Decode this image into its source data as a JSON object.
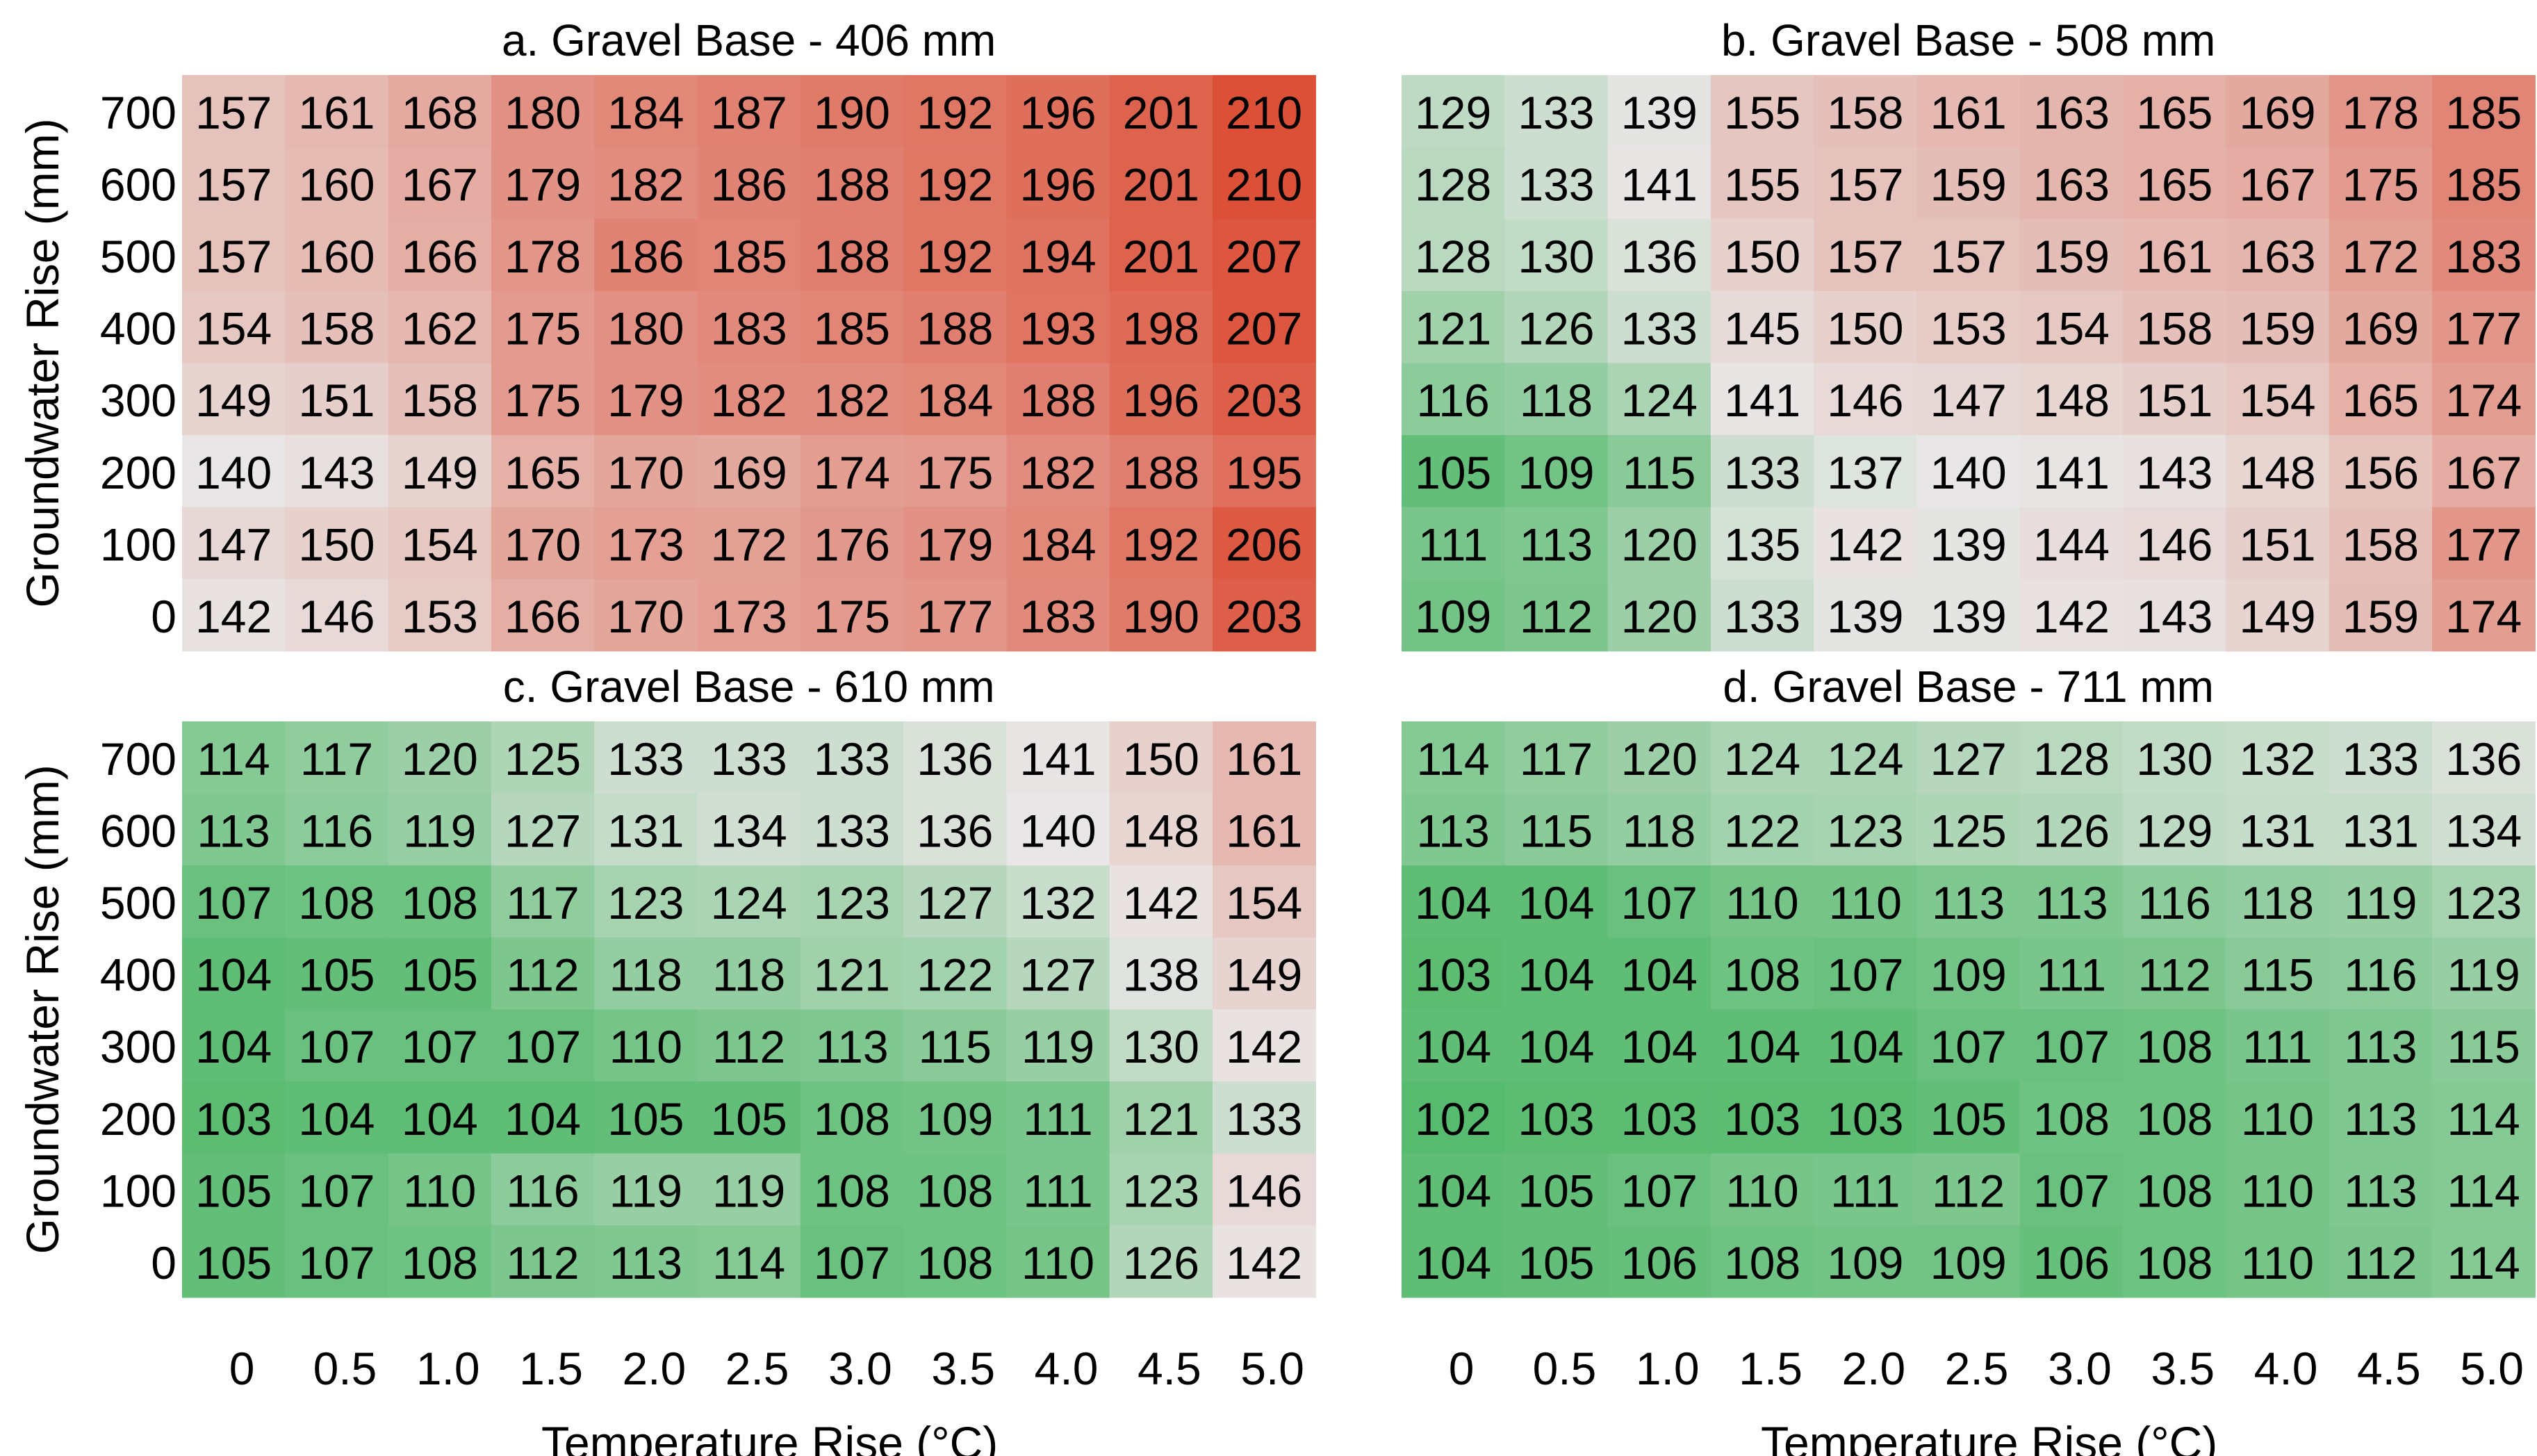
{
  "colors": {
    "low": "#57bb6f",
    "mid": "#e8e6e6",
    "high": "#dd5038"
  },
  "chart_data": [
    {
      "type": "heatmap",
      "title": "a. Gravel Base - 406 mm",
      "xlabel": "Temperature Rise (°C)",
      "ylabel": "Groundwater Rise (mm)",
      "x": [
        "0",
        "0.5",
        "1.0",
        "1.5",
        "2.0",
        "2.5",
        "3.0",
        "3.5",
        "4.0",
        "4.5",
        "5.0"
      ],
      "y": [
        "700",
        "600",
        "500",
        "400",
        "300",
        "200",
        "100",
        "0"
      ],
      "values": [
        [
          157,
          161,
          168,
          180,
          184,
          187,
          190,
          192,
          196,
          201,
          210
        ],
        [
          157,
          160,
          167,
          179,
          182,
          186,
          188,
          192,
          196,
          201,
          210
        ],
        [
          157,
          160,
          166,
          178,
          186,
          185,
          188,
          192,
          194,
          201,
          207
        ],
        [
          154,
          158,
          162,
          175,
          180,
          183,
          185,
          188,
          193,
          198,
          207
        ],
        [
          149,
          151,
          158,
          175,
          179,
          182,
          182,
          184,
          188,
          196,
          203
        ],
        [
          140,
          143,
          149,
          165,
          170,
          169,
          174,
          175,
          182,
          188,
          195
        ],
        [
          147,
          150,
          154,
          170,
          173,
          172,
          176,
          179,
          184,
          192,
          206
        ],
        [
          142,
          146,
          153,
          166,
          170,
          173,
          175,
          177,
          183,
          190,
          203
        ]
      ]
    },
    {
      "type": "heatmap",
      "title": "b. Gravel Base - 508 mm",
      "xlabel": "Temperature Rise (°C)",
      "ylabel": "",
      "x": [
        "0",
        "0.5",
        "1.0",
        "1.5",
        "2.0",
        "2.5",
        "3.0",
        "3.5",
        "4.0",
        "4.5",
        "5.0"
      ],
      "y": [
        "700",
        "600",
        "500",
        "400",
        "300",
        "200",
        "100",
        "0"
      ],
      "values": [
        [
          129,
          133,
          139,
          155,
          158,
          161,
          163,
          165,
          169,
          178,
          185
        ],
        [
          128,
          133,
          141,
          155,
          157,
          159,
          163,
          165,
          167,
          175,
          185
        ],
        [
          128,
          130,
          136,
          150,
          157,
          157,
          159,
          161,
          163,
          172,
          183
        ],
        [
          121,
          126,
          133,
          145,
          150,
          153,
          154,
          158,
          159,
          169,
          177
        ],
        [
          116,
          118,
          124,
          141,
          146,
          147,
          148,
          151,
          154,
          165,
          174
        ],
        [
          105,
          109,
          115,
          133,
          137,
          140,
          141,
          143,
          148,
          156,
          167
        ],
        [
          111,
          113,
          120,
          135,
          142,
          139,
          144,
          146,
          151,
          158,
          177
        ],
        [
          109,
          112,
          120,
          133,
          139,
          139,
          142,
          143,
          149,
          159,
          174
        ]
      ]
    },
    {
      "type": "heatmap",
      "title": "c. Gravel Base - 610 mm",
      "xlabel": "Temperature Rise (°C)",
      "ylabel": "Groundwater Rise (mm)",
      "x": [
        "0",
        "0.5",
        "1.0",
        "1.5",
        "2.0",
        "2.5",
        "3.0",
        "3.5",
        "4.0",
        "4.5",
        "5.0"
      ],
      "y": [
        "700",
        "600",
        "500",
        "400",
        "300",
        "200",
        "100",
        "0"
      ],
      "values": [
        [
          114,
          117,
          120,
          125,
          133,
          133,
          133,
          136,
          141,
          150,
          161
        ],
        [
          113,
          116,
          119,
          127,
          131,
          134,
          133,
          136,
          140,
          148,
          161
        ],
        [
          107,
          108,
          108,
          117,
          123,
          124,
          123,
          127,
          132,
          142,
          154
        ],
        [
          104,
          105,
          105,
          112,
          118,
          118,
          121,
          122,
          127,
          138,
          149
        ],
        [
          104,
          107,
          107,
          107,
          110,
          112,
          113,
          115,
          119,
          130,
          142
        ],
        [
          103,
          104,
          104,
          104,
          105,
          105,
          108,
          109,
          111,
          121,
          133
        ],
        [
          105,
          107,
          110,
          116,
          119,
          119,
          108,
          108,
          111,
          123,
          146
        ],
        [
          105,
          107,
          108,
          112,
          113,
          114,
          107,
          108,
          110,
          126,
          142
        ]
      ]
    },
    {
      "type": "heatmap",
      "title": "d. Gravel Base - 711 mm",
      "xlabel": "Temperature Rise (°C)",
      "ylabel": "",
      "x": [
        "0",
        "0.5",
        "1.0",
        "1.5",
        "2.0",
        "2.5",
        "3.0",
        "3.5",
        "4.0",
        "4.5",
        "5.0"
      ],
      "y": [
        "700",
        "600",
        "500",
        "400",
        "300",
        "200",
        "100",
        "0"
      ],
      "values": [
        [
          114,
          117,
          120,
          124,
          124,
          127,
          128,
          130,
          132,
          133,
          136
        ],
        [
          113,
          115,
          118,
          122,
          123,
          125,
          126,
          129,
          131,
          131,
          134
        ],
        [
          104,
          104,
          107,
          110,
          110,
          113,
          113,
          116,
          118,
          119,
          123
        ],
        [
          103,
          104,
          104,
          108,
          107,
          109,
          111,
          112,
          115,
          116,
          119
        ],
        [
          104,
          104,
          104,
          104,
          104,
          107,
          107,
          108,
          111,
          113,
          115
        ],
        [
          102,
          103,
          103,
          103,
          103,
          105,
          108,
          108,
          110,
          113,
          114
        ],
        [
          104,
          105,
          107,
          110,
          111,
          112,
          107,
          108,
          110,
          113,
          114
        ],
        [
          104,
          105,
          106,
          108,
          109,
          109,
          106,
          108,
          110,
          112,
          114
        ]
      ]
    }
  ]
}
